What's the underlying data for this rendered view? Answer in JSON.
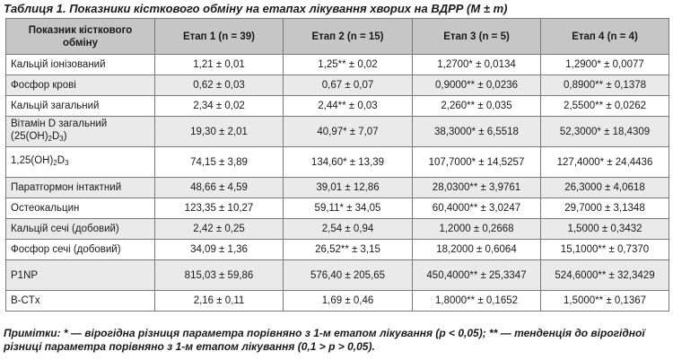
{
  "caption": "Таблиця 1. Показники кісткового обміну на етапах лікування хворих на ВДРР (M ± m)",
  "table": {
    "headers": [
      "Показник кісткового обміну",
      "Етап 1 (n = 39)",
      "Етап 2 (n = 15)",
      "Етап 3 (n = 5)",
      "Етап 4 (n = 4)"
    ],
    "rows": [
      {
        "label": "Кальцій іонізований",
        "values": [
          "1,21 ± 0,01",
          "1,25** ± 0,02",
          "1,2700* ± 0,0134",
          "1,2900* ± 0,0077"
        ]
      },
      {
        "label": "Фосфор крові",
        "values": [
          "0,62 ± 0,03",
          "0,67 ± 0,07",
          "0,9000** ± 0,0236",
          "0,8900** ± 0,1378"
        ]
      },
      {
        "label": "Кальцій загальний",
        "values": [
          "2,34 ± 0,02",
          "2,44** ± 0,03",
          "2,260** ± 0,035",
          "2,5500** ± 0,0262"
        ]
      },
      {
        "label_parts": {
          "a": "Вітамін D загальний",
          "b": "(25(OH)",
          "s1": "2",
          "c": "D",
          "s2": "3",
          "d": ")"
        },
        "values": [
          "19,30 ± 2,01",
          "40,97* ± 7,07",
          "38,3000* ± 6,5518",
          "52,3000* ± 18,4309"
        ]
      },
      {
        "label_parts": {
          "a": "1,25(OH)",
          "s1": "2",
          "b": "D",
          "s2": "3"
        },
        "values": [
          "74,15 ± 3,89",
          "134,60* ± 13,39",
          "107,7000* ± 14,5257",
          "127,4000* ± 24,4436"
        ]
      },
      {
        "label": "Паратгормон інтактний",
        "values": [
          "48,66 ± 4,59",
          "39,01 ± 12,86",
          "28,0300** ± 3,9761",
          "26,3000 ± 4,0618"
        ]
      },
      {
        "label": "Остеокальцин",
        "values": [
          "123,35 ± 10,27",
          "59,11* ± 34,05",
          "60,4000** ± 3,0247",
          "29,7000 ± 3,1348"
        ]
      },
      {
        "label": "Кальцій сечі (добовий)",
        "values": [
          "2,42 ± 0,25",
          "2,54 ± 0,94",
          "1,2000 ± 0,2668",
          "1,5000 ± 0,3432"
        ]
      },
      {
        "label": "Фосфор сечі (добовий)",
        "values": [
          "34,09 ± 1,36",
          "26,52** ± 3,15",
          "18,2000 ± 0,6064",
          "15,1000** ± 0,7370"
        ]
      },
      {
        "label": "P1NP",
        "values": [
          "815,03 ± 59,86",
          "576,40 ± 205,65",
          "450,4000** ± 25,3347",
          "524,6000** ± 32,3429"
        ]
      },
      {
        "label": "B-CTx",
        "values": [
          "2,16 ± 0,11",
          "1,69 ± 0,46",
          "1,8000** ± 0,1652",
          "1,5000** ± 0,1367"
        ]
      }
    ]
  },
  "notes": "Примітки: * — вірогідна різниця параметра порівняно з 1-м етапом лікування (p < 0,05); ** — тенденція до вірогідної різниці параметра порівняно з 1-м етапом лікування (0,1 > p > 0,05)."
}
